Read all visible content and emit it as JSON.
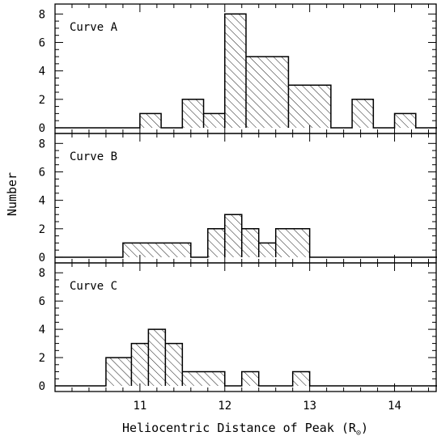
{
  "chart_data": {
    "type": "histogram",
    "xlabel": "Heliocentric Distance of Peak (R",
    "xlabel_subscript": "⊙",
    "xlabel_close": ")",
    "ylabel": "Number",
    "xlim": [
      10.0,
      14.5
    ],
    "ylim": [
      -0.4,
      8.7
    ],
    "x_ticks": [
      11,
      12,
      13,
      14
    ],
    "x_tick_labels": [
      "11",
      "12",
      "13",
      "14"
    ],
    "y_ticks": [
      0,
      2,
      4,
      6,
      8
    ],
    "y_tick_labels": [
      "0",
      "2",
      "4",
      "6",
      "8"
    ],
    "bin_edges": [
      10.0,
      10.2,
      10.4,
      10.6,
      10.8,
      11.0,
      11.2,
      11.4,
      11.6,
      11.8,
      12.0,
      12.2,
      12.4,
      12.6,
      12.8,
      13.0,
      13.2,
      13.4,
      13.6,
      13.8,
      14.0,
      14.2,
      14.4
    ],
    "panels": [
      {
        "label": "Curve A",
        "bins": [
          {
            "x0": 11.0,
            "x1": 11.25,
            "count": 1
          },
          {
            "x0": 11.5,
            "x1": 11.75,
            "count": 2
          },
          {
            "x0": 11.75,
            "x1": 12.0,
            "count": 1
          },
          {
            "x0": 12.0,
            "x1": 12.25,
            "count": 8
          },
          {
            "x0": 12.25,
            "x1": 12.75,
            "count": 5
          },
          {
            "x0": 12.75,
            "x1": 13.25,
            "count": 3
          },
          {
            "x0": 13.5,
            "x1": 13.75,
            "count": 2
          },
          {
            "x0": 14.0,
            "x1": 14.25,
            "count": 1
          }
        ]
      },
      {
        "label": "Curve B",
        "bins": [
          {
            "x0": 10.8,
            "x1": 11.6,
            "count": 1
          },
          {
            "x0": 11.8,
            "x1": 12.0,
            "count": 2
          },
          {
            "x0": 12.0,
            "x1": 12.2,
            "count": 3
          },
          {
            "x0": 12.2,
            "x1": 12.4,
            "count": 2
          },
          {
            "x0": 12.4,
            "x1": 12.6,
            "count": 1
          },
          {
            "x0": 12.6,
            "x1": 13.0,
            "count": 2
          }
        ]
      },
      {
        "label": "Curve C",
        "bins": [
          {
            "x0": 10.6,
            "x1": 10.9,
            "count": 2
          },
          {
            "x0": 10.9,
            "x1": 11.1,
            "count": 3
          },
          {
            "x0": 11.1,
            "x1": 11.3,
            "count": 4
          },
          {
            "x0": 11.3,
            "x1": 11.5,
            "count": 3
          },
          {
            "x0": 11.5,
            "x1": 12.0,
            "count": 1
          },
          {
            "x0": 12.2,
            "x1": 12.4,
            "count": 1
          },
          {
            "x0": 12.8,
            "x1": 13.0,
            "count": 1
          }
        ]
      }
    ]
  }
}
